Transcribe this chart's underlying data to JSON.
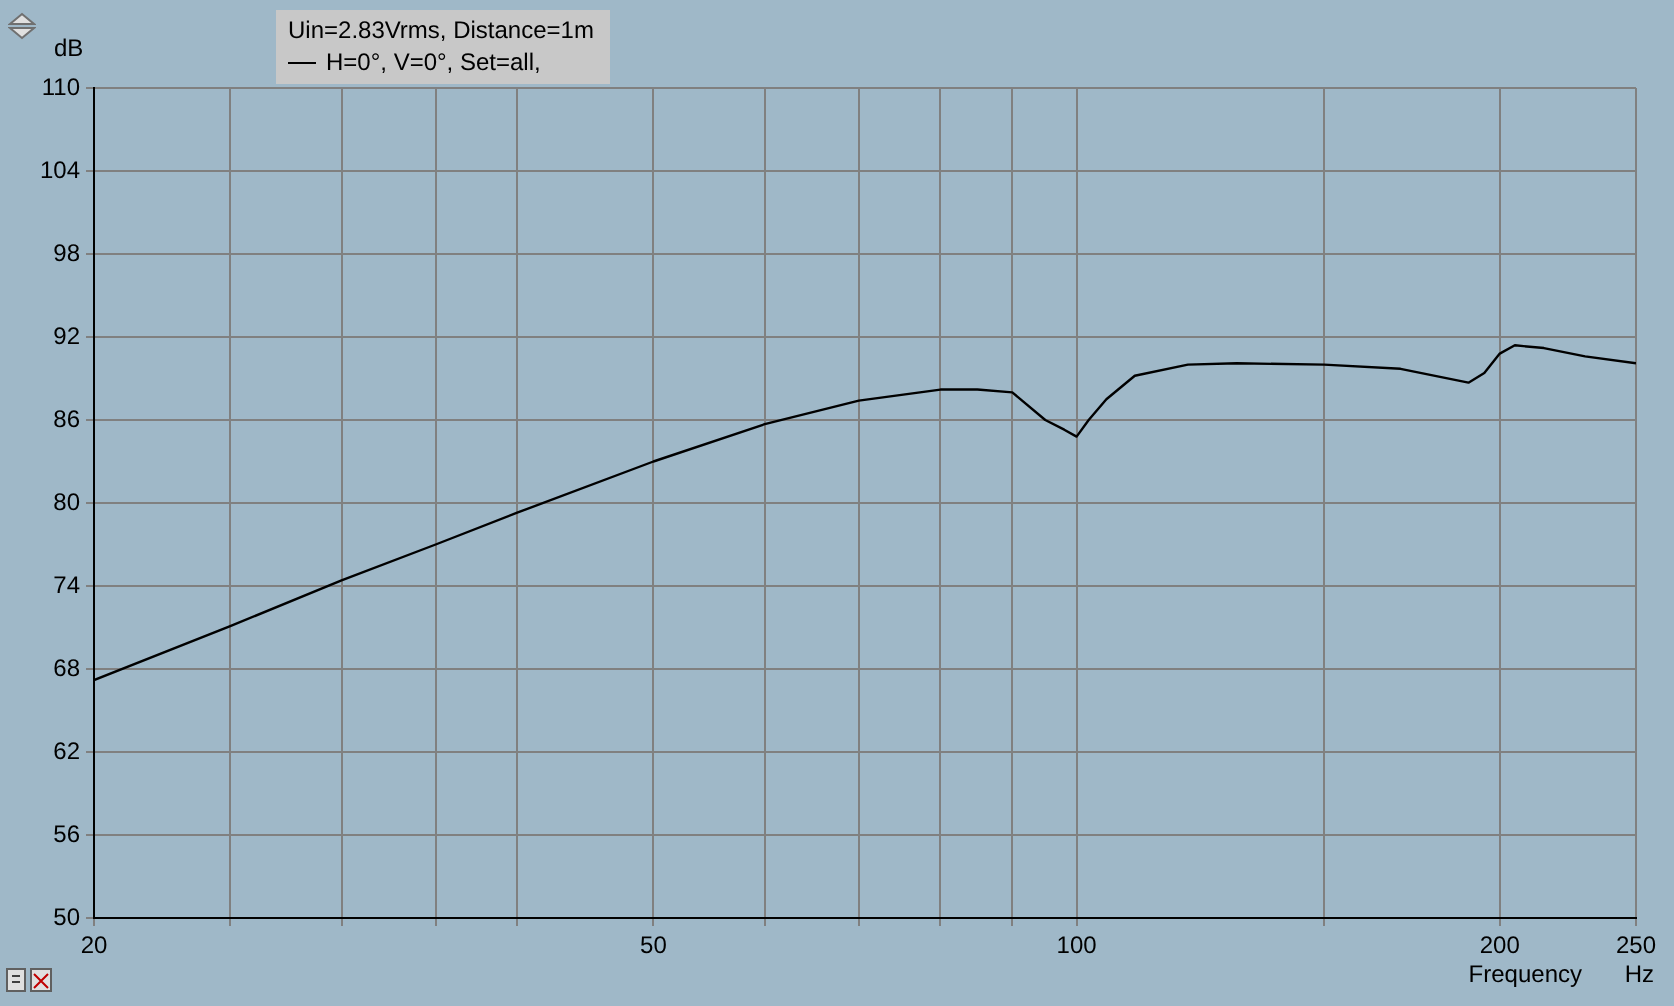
{
  "chart_data": {
    "type": "line",
    "ylabel": "dB",
    "xlabel": "Frequency",
    "legend_title": "Uin=2.83Vrms, Distance=1m",
    "annotations": [
      "Hz"
    ],
    "log": "x",
    "xlim": [
      20,
      250
    ],
    "ylim": [
      50,
      110
    ],
    "xticks": [
      20,
      {
        "value": 25,
        "label": null
      },
      {
        "value": 30,
        "label": null
      },
      {
        "value": 35,
        "label": null
      },
      {
        "value": 40,
        "label": null
      },
      50,
      {
        "value": 60,
        "label": null
      },
      {
        "value": 70,
        "label": null
      },
      {
        "value": 80,
        "label": null
      },
      {
        "value": 90,
        "label": null
      },
      100,
      {
        "value": 150,
        "label": null
      },
      200,
      250
    ],
    "yticks": [
      50,
      56,
      62,
      68,
      74,
      80,
      86,
      92,
      98,
      104,
      110
    ],
    "grid": true,
    "legend": "top",
    "marker": "none",
    "line_style": "solid",
    "series": [
      {
        "name": "H=0°, V=0°, Set=all,",
        "color": "#000000",
        "x": [
          20,
          25,
          30,
          35,
          40,
          50,
          60,
          70,
          80,
          85,
          90,
          95,
          98,
          100,
          102,
          105,
          110,
          120,
          130,
          150,
          170,
          190,
          195,
          200,
          205,
          215,
          230,
          250
        ],
        "values": [
          67.2,
          71.1,
          74.4,
          77.0,
          79.3,
          83.0,
          85.7,
          87.4,
          88.2,
          88.2,
          88.0,
          86.0,
          85.3,
          84.8,
          86.0,
          87.5,
          89.2,
          90.0,
          90.1,
          90.0,
          89.7,
          88.7,
          89.4,
          90.8,
          91.4,
          91.2,
          90.6,
          90.1
        ]
      }
    ]
  }
}
